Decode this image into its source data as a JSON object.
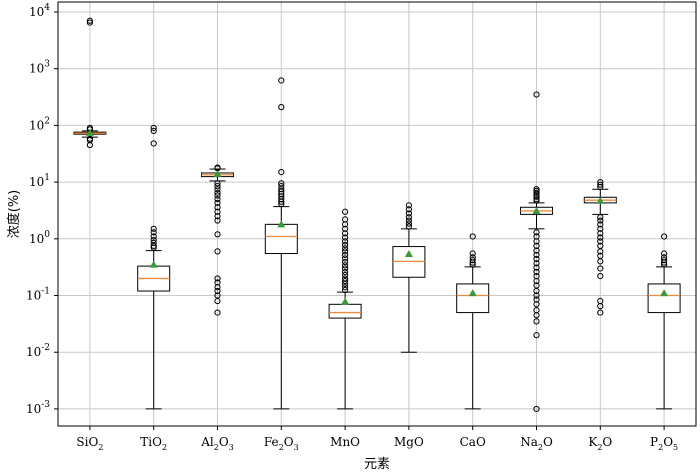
{
  "chart_data": {
    "type": "box",
    "title": "",
    "xlabel": "元素",
    "ylabel": "浓度(%)",
    "yscale": "log",
    "ylim": [
      0.0005,
      15000
    ],
    "y_ticks": [
      {
        "value": 0.001,
        "base": "10",
        "exp": "-3"
      },
      {
        "value": 0.01,
        "base": "10",
        "exp": "-2"
      },
      {
        "value": 0.1,
        "base": "10",
        "exp": "-1"
      },
      {
        "value": 1,
        "base": "10",
        "exp": "0"
      },
      {
        "value": 10,
        "base": "10",
        "exp": "1"
      },
      {
        "value": 100,
        "base": "10",
        "exp": "2"
      },
      {
        "value": 1000,
        "base": "10",
        "exp": "3"
      },
      {
        "value": 10000,
        "base": "10",
        "exp": "4"
      }
    ],
    "grid": true,
    "colors": {
      "median": "#f08a3c",
      "mean": "#3a9a3a",
      "box_fill": "#ffffff",
      "grid": "#c8c8c8"
    },
    "categories": [
      {
        "label": [
          [
            "Si",
            ""
          ],
          [
            "O",
            ""
          ],
          [
            "2",
            "sub"
          ]
        ],
        "q1": 70,
        "median": 73,
        "q3": 76,
        "whisker_low": 62,
        "whisker_high": 80,
        "mean": 74,
        "outliers": [
          7000,
          6500,
          90,
          85,
          58,
          55,
          45
        ]
      },
      {
        "label": [
          [
            "Ti",
            ""
          ],
          [
            "O",
            ""
          ],
          [
            "2",
            "sub"
          ]
        ],
        "q1": 0.12,
        "median": 0.2,
        "q3": 0.33,
        "whisker_low": 0.001,
        "whisker_high": 0.62,
        "mean": 0.35,
        "outliers": [
          90,
          80,
          48,
          1.5,
          1.3,
          1.1,
          0.95,
          0.85,
          0.75,
          0.7
        ]
      },
      {
        "label": [
          [
            "Al",
            ""
          ],
          [
            "2",
            "sub"
          ],
          [
            "O",
            ""
          ],
          [
            "3",
            "sub"
          ]
        ],
        "q1": 12.5,
        "median": 13.5,
        "q3": 14.5,
        "whisker_low": 10.5,
        "whisker_high": 17,
        "mean": 14,
        "outliers": [
          18,
          17.5,
          9.5,
          8.5,
          7.5,
          6.5,
          5.8,
          5,
          4.3,
          3.6,
          3,
          2.5,
          2.1,
          1.2,
          0.6,
          0.2,
          0.17,
          0.14,
          0.12,
          0.1,
          0.08,
          0.05
        ]
      },
      {
        "label": [
          [
            "Fe",
            ""
          ],
          [
            "2",
            "sub"
          ],
          [
            "O",
            ""
          ],
          [
            "3",
            "sub"
          ]
        ],
        "q1": 0.55,
        "median": 1.1,
        "q3": 1.8,
        "whisker_low": 0.001,
        "whisker_high": 3.7,
        "mean": 1.8,
        "outliers": [
          620,
          210,
          15,
          9.5,
          8.5,
          7.5,
          6.8,
          6.2,
          5.6,
          5,
          4.5,
          4.1
        ]
      },
      {
        "label": [
          [
            "Mn",
            ""
          ],
          [
            "O",
            ""
          ]
        ],
        "q1": 0.04,
        "median": 0.05,
        "q3": 0.07,
        "whisker_low": 0.001,
        "whisker_high": 0.115,
        "mean": 0.078,
        "outliers": [
          3,
          2.2,
          1.8,
          1.5,
          1.25,
          1.05,
          0.9,
          0.78,
          0.68,
          0.6,
          0.52,
          0.45,
          0.39,
          0.34,
          0.3,
          0.26,
          0.23,
          0.2,
          0.18,
          0.16,
          0.14,
          0.125
        ]
      },
      {
        "label": [
          [
            "Mg",
            ""
          ],
          [
            "O",
            ""
          ]
        ],
        "q1": 0.21,
        "median": 0.4,
        "q3": 0.73,
        "whisker_low": 0.01,
        "whisker_high": 1.5,
        "mean": 0.54,
        "outliers": [
          3.9,
          3.3,
          2.8,
          2.4,
          2.1,
          1.85,
          1.65
        ]
      },
      {
        "label": [
          [
            "Ca",
            ""
          ],
          [
            "O",
            ""
          ]
        ],
        "q1": 0.05,
        "median": 0.1,
        "q3": 0.16,
        "whisker_low": 0.001,
        "whisker_high": 0.32,
        "mean": 0.11,
        "outliers": [
          1.1,
          0.55,
          0.47,
          0.42,
          0.38,
          0.35
        ]
      },
      {
        "label": [
          [
            "Na",
            ""
          ],
          [
            "2",
            "sub"
          ],
          [
            "O",
            ""
          ]
        ],
        "q1": 2.7,
        "median": 3.1,
        "q3": 3.6,
        "whisker_low": 1.5,
        "whisker_high": 4.3,
        "mean": 3.1,
        "outliers": [
          350,
          7.5,
          7,
          6.5,
          6,
          5.5,
          5,
          4.7,
          1.3,
          1.1,
          0.9,
          0.75,
          0.62,
          0.52,
          0.44,
          0.37,
          0.31,
          0.26,
          0.22,
          0.18,
          0.15,
          0.12,
          0.1,
          0.085,
          0.07,
          0.055,
          0.045,
          0.035,
          0.02,
          0.001
        ]
      },
      {
        "label": [
          [
            "K",
            ""
          ],
          [
            "2",
            "sub"
          ],
          [
            "O",
            ""
          ]
        ],
        "q1": 4.3,
        "median": 4.8,
        "q3": 5.4,
        "whisker_low": 2.7,
        "whisker_high": 7.5,
        "mean": 4.7,
        "outliers": [
          10,
          9,
          8.2,
          2.4,
          2.1,
          1.8,
          1.5,
          1.25,
          1.05,
          0.9,
          0.75,
          0.6,
          0.5,
          0.4,
          0.3,
          0.22,
          0.08,
          0.065,
          0.05
        ]
      },
      {
        "label": [
          [
            "P",
            ""
          ],
          [
            "2",
            "sub"
          ],
          [
            "O",
            ""
          ],
          [
            "5",
            "sub"
          ]
        ],
        "q1": 0.05,
        "median": 0.1,
        "q3": 0.16,
        "whisker_low": 0.001,
        "whisker_high": 0.32,
        "mean": 0.11,
        "outliers": [
          1.1,
          0.55,
          0.47,
          0.42,
          0.38,
          0.35
        ]
      }
    ]
  }
}
